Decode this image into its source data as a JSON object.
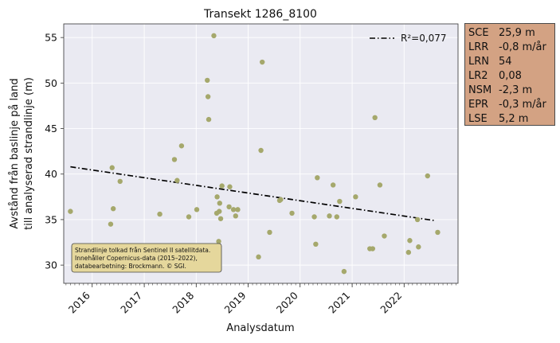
{
  "chart_data": {
    "type": "scatter",
    "title": "Transekt 1286_8100",
    "xlabel": "Analysdatum",
    "ylabel": [
      "Avstånd från baslinje på land",
      "till analyserad strandlinje (m)"
    ],
    "xlim": [
      "2015-06-15",
      "2023-01-15"
    ],
    "ylim": [
      28,
      56.5
    ],
    "yticks": [
      30,
      35,
      40,
      45,
      50,
      55
    ],
    "xticks": [
      "2016",
      "2017",
      "2018",
      "2019",
      "2020",
      "2021",
      "2022"
    ],
    "grid": true,
    "point_color": "#a5a86c",
    "trend_color": "#000000",
    "legend": {
      "label": "R²=0,077",
      "placement": "top-right"
    },
    "trend": {
      "start": {
        "x": "2015-08-01",
        "y": 40.8
      },
      "end": {
        "x": "2022-08-01",
        "y": 34.9
      }
    },
    "points": [
      {
        "x": "2015-08-01",
        "y": 35.9
      },
      {
        "x": "2016-05-10",
        "y": 34.5
      },
      {
        "x": "2016-05-20",
        "y": 40.7
      },
      {
        "x": "2016-05-28",
        "y": 36.2
      },
      {
        "x": "2016-07-15",
        "y": 39.2
      },
      {
        "x": "2017-04-20",
        "y": 35.6
      },
      {
        "x": "2017-08-01",
        "y": 41.6
      },
      {
        "x": "2017-08-20",
        "y": 39.3
      },
      {
        "x": "2017-09-20",
        "y": 43.1
      },
      {
        "x": "2017-11-10",
        "y": 35.3
      },
      {
        "x": "2018-01-05",
        "y": 36.1
      },
      {
        "x": "2018-03-20",
        "y": 50.3
      },
      {
        "x": "2018-03-25",
        "y": 48.5
      },
      {
        "x": "2018-03-30",
        "y": 46.0
      },
      {
        "x": "2018-05-05",
        "y": 55.2
      },
      {
        "x": "2018-05-25",
        "y": 35.7
      },
      {
        "x": "2018-05-28",
        "y": 37.5
      },
      {
        "x": "2018-06-08",
        "y": 32.6
      },
      {
        "x": "2018-06-12",
        "y": 35.9
      },
      {
        "x": "2018-06-15",
        "y": 36.8
      },
      {
        "x": "2018-06-22",
        "y": 35.1
      },
      {
        "x": "2018-07-01",
        "y": 38.7
      },
      {
        "x": "2018-08-20",
        "y": 36.4
      },
      {
        "x": "2018-08-25",
        "y": 38.6
      },
      {
        "x": "2018-09-20",
        "y": 36.1
      },
      {
        "x": "2018-10-05",
        "y": 35.4
      },
      {
        "x": "2018-10-20",
        "y": 36.1
      },
      {
        "x": "2019-03-15",
        "y": 30.9
      },
      {
        "x": "2019-04-01",
        "y": 42.6
      },
      {
        "x": "2019-04-10",
        "y": 52.3
      },
      {
        "x": "2019-06-01",
        "y": 33.6
      },
      {
        "x": "2019-08-10",
        "y": 37.1
      },
      {
        "x": "2019-08-18",
        "y": 37.2
      },
      {
        "x": "2019-11-05",
        "y": 35.7
      },
      {
        "x": "2020-04-10",
        "y": 35.3
      },
      {
        "x": "2020-04-20",
        "y": 32.3
      },
      {
        "x": "2020-05-01",
        "y": 39.6
      },
      {
        "x": "2020-07-25",
        "y": 35.4
      },
      {
        "x": "2020-08-20",
        "y": 38.8
      },
      {
        "x": "2020-09-15",
        "y": 35.3
      },
      {
        "x": "2020-10-05",
        "y": 37.0
      },
      {
        "x": "2020-11-05",
        "y": 29.3
      },
      {
        "x": "2021-01-25",
        "y": 37.5
      },
      {
        "x": "2021-05-05",
        "y": 31.8
      },
      {
        "x": "2021-05-25",
        "y": 31.8
      },
      {
        "x": "2021-06-10",
        "y": 46.2
      },
      {
        "x": "2021-07-15",
        "y": 38.8
      },
      {
        "x": "2021-08-15",
        "y": 33.2
      },
      {
        "x": "2022-02-01",
        "y": 31.4
      },
      {
        "x": "2022-02-10",
        "y": 32.7
      },
      {
        "x": "2022-04-05",
        "y": 35.0
      },
      {
        "x": "2022-04-12",
        "y": 32.0
      },
      {
        "x": "2022-06-15",
        "y": 39.8
      },
      {
        "x": "2022-08-25",
        "y": 33.6
      }
    ],
    "annotation": {
      "lines": [
        "Strandlinje tolkad från Sentinel II satellitdata.",
        "Innehåller Copernicus-data (2015–2022),",
        "databearbetning: Brockmann. © SGI."
      ],
      "background": "#e5d79c"
    }
  },
  "stats_box": {
    "background": "#d3a283",
    "rows": [
      {
        "label": "SCE",
        "value": "25,9 m"
      },
      {
        "label": "LRR",
        "value": "-0,8 m/år"
      },
      {
        "label": "LRN",
        "value": "54"
      },
      {
        "label": "LR2",
        "value": "0,08"
      },
      {
        "label": "NSM",
        "value": "-2,3 m"
      },
      {
        "label": "EPR",
        "value": "-0,3 m/år"
      },
      {
        "label": "LSE",
        "value": "5,2 m"
      }
    ]
  }
}
